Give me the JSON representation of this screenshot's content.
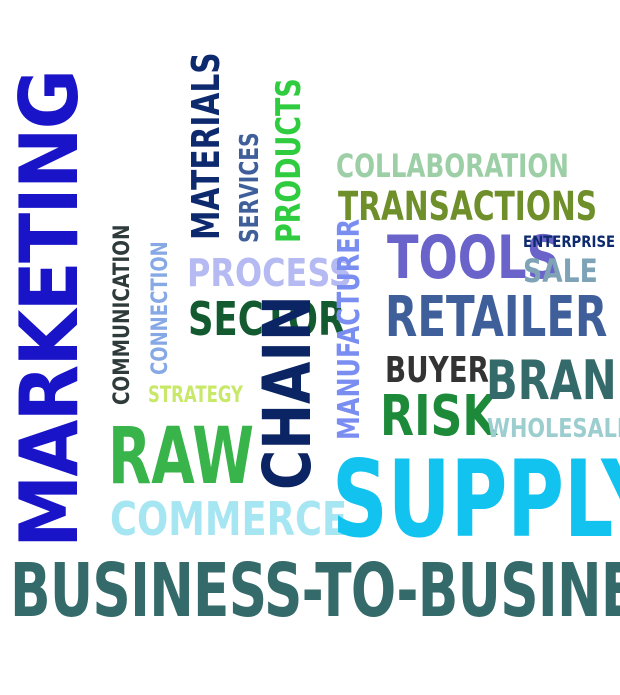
{
  "words": {
    "marketing": "MARKETING",
    "communication": "COMMUNICATION",
    "connection": "CONNECTION",
    "materials": "MATERIALS",
    "services": "SERVICES",
    "products": "PRODUCTS",
    "process": "PROCESS",
    "sector": "SECTOR",
    "chain": "CHAIN",
    "manufacturer": "MANUFACTURER",
    "strategy": "STRATEGY",
    "raw": "RAW",
    "commerce": "COMMERCE",
    "collaboration": "COLLABORATION",
    "transactions": "TRANSACTIONS",
    "tools": "TOOLS",
    "enterprise": "ENTERPRISE",
    "sale": "SALE",
    "retailer": "RETAILER",
    "buyer": "BUYER",
    "risk": "RISK",
    "brand": "BRAND",
    "wholesaler": "WHOLESALER",
    "supply": "SUPPLY",
    "b2b": "BUSINESS-TO-BUSINESS"
  },
  "colors": {
    "background": "#ffffff",
    "blue": "#1a14c9",
    "navy": "#0e2a6e",
    "dark_navy": "#0b2463",
    "steel_blue": "#3f5f9a",
    "periwinkle": "#7a8ef2",
    "lavender": "#b6baf2",
    "light_blue": "#86a9e6",
    "sky": "#12c3ef",
    "pale_cyan": "#a6e6f3",
    "green": "#2fcc3f",
    "grass": "#38b44a",
    "dark_green": "#145a30",
    "forest": "#1d8a3a",
    "olive": "#6e8f2a",
    "lime": "#c8e86a",
    "sage": "#9ccfa6",
    "slate": "#346a6a",
    "charcoal": "#2f3a3a",
    "teal_grey": "#9ccdcf",
    "grey_blue": "#7ea3b6",
    "dark_grey": "#333333",
    "periwinkle_dark": "#6a63c9"
  }
}
